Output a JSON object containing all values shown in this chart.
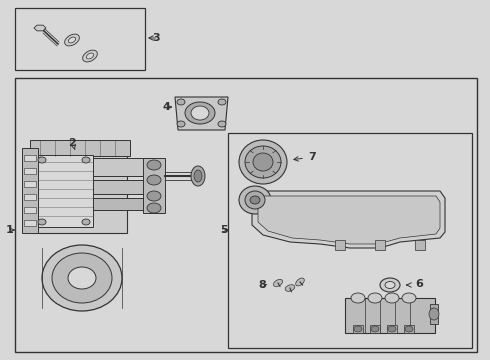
{
  "bg_color": "#d8d8d8",
  "white": "#ffffff",
  "box_fill": "#d0d0d0",
  "line_color": "#333333",
  "fig_width": 4.9,
  "fig_height": 3.6,
  "dpi": 100,
  "label_fontsize": 8,
  "label_color": "#333333"
}
